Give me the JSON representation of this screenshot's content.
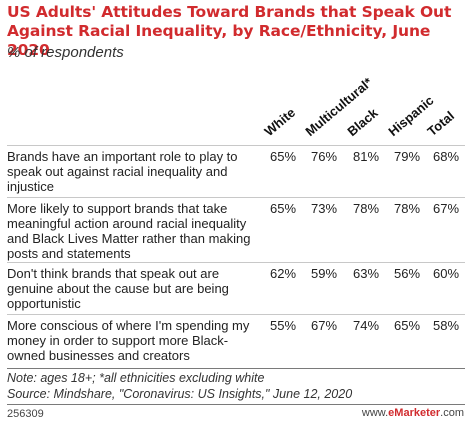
{
  "chart_data": {
    "type": "table",
    "title": "US Adults' Attitudes Toward Brands that Speak Out Against Racial Inequality, by Race/Ethnicity, June 2020",
    "subtitle": "% of respondents",
    "columns": [
      "White",
      "Multicultural*",
      "Black",
      "Hispanic",
      "Total"
    ],
    "rows": [
      {
        "label": "Brands have an important role to play to speak out against racial inequality and injustice",
        "values": [
          "65%",
          "76%",
          "81%",
          "79%",
          "68%"
        ]
      },
      {
        "label": "More likely to support brands that take meaningful action around racial inequality and Black Lives Matter rather than making posts and statements",
        "values": [
          "65%",
          "73%",
          "78%",
          "78%",
          "67%"
        ]
      },
      {
        "label": "Don't think brands that speak out are genuine about the cause but are being opportunistic",
        "values": [
          "62%",
          "59%",
          "63%",
          "56%",
          "60%"
        ]
      },
      {
        "label": "More conscious of where I'm spending my money in order to support more Black-owned businesses and creators",
        "values": [
          "55%",
          "67%",
          "74%",
          "65%",
          "58%"
        ]
      }
    ]
  },
  "notes": {
    "note": "Note: ages 18+; *all ethnicities excluding white",
    "source": "Source: Mindshare, \"Coronavirus: US Insights,\" June 12, 2020"
  },
  "footer": {
    "id": "256309",
    "brand_prefix": "www.",
    "brand_name": "eMarketer",
    "brand_suffix": ".com"
  },
  "colors": {
    "title": "#d12b2e",
    "rule": "#c8c8c8"
  }
}
